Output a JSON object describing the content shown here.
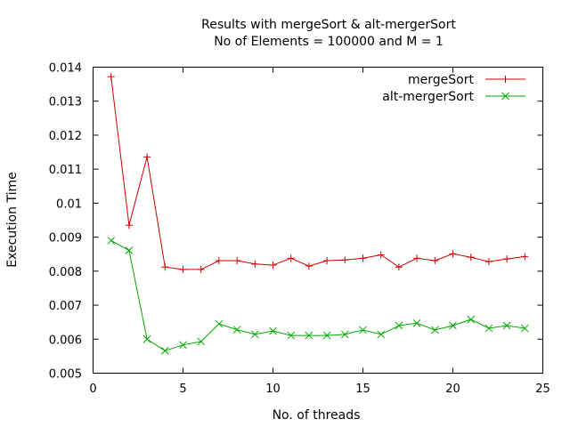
{
  "chart_data": {
    "type": "line",
    "title": "Results with mergeSort & alt-mergerSort",
    "subtitle": "No of Elements = 100000 and M = 1",
    "xlabel": "No. of threads",
    "ylabel": "Execution Time",
    "xlim": [
      0,
      25
    ],
    "ylim": [
      0.005,
      0.014
    ],
    "xticks": [
      "0",
      "5",
      "10",
      "15",
      "20",
      "25"
    ],
    "yticks": [
      "0.005",
      "0.006",
      "0.007",
      "0.008",
      "0.009",
      "0.01",
      "0.011",
      "0.012",
      "0.013",
      "0.014"
    ],
    "grid": false,
    "legend_position": "top-right",
    "x": [
      1,
      2,
      3,
      4,
      5,
      6,
      7,
      8,
      9,
      10,
      11,
      12,
      13,
      14,
      15,
      16,
      17,
      18,
      19,
      20,
      21,
      22,
      23,
      24
    ],
    "series": [
      {
        "name": "mergeSort",
        "color": "#cc0000",
        "marker": "plus",
        "values": [
          0.01372,
          0.00935,
          0.01136,
          0.00812,
          0.00805,
          0.00805,
          0.00831,
          0.00831,
          0.00821,
          0.00818,
          0.00838,
          0.00815,
          0.00831,
          0.00833,
          0.00838,
          0.00848,
          0.00812,
          0.00838,
          0.00831,
          0.00851,
          0.00841,
          0.00828,
          0.00836,
          0.00843
        ]
      },
      {
        "name": "alt-mergerSort",
        "color": "#00aa00",
        "marker": "cross",
        "values": [
          0.0089,
          0.00861,
          0.006,
          0.00566,
          0.00583,
          0.00593,
          0.00645,
          0.00628,
          0.00614,
          0.00624,
          0.00611,
          0.00611,
          0.00611,
          0.00614,
          0.00627,
          0.00614,
          0.0064,
          0.00647,
          0.00627,
          0.0064,
          0.00658,
          0.00632,
          0.0064,
          0.00632
        ]
      }
    ]
  }
}
